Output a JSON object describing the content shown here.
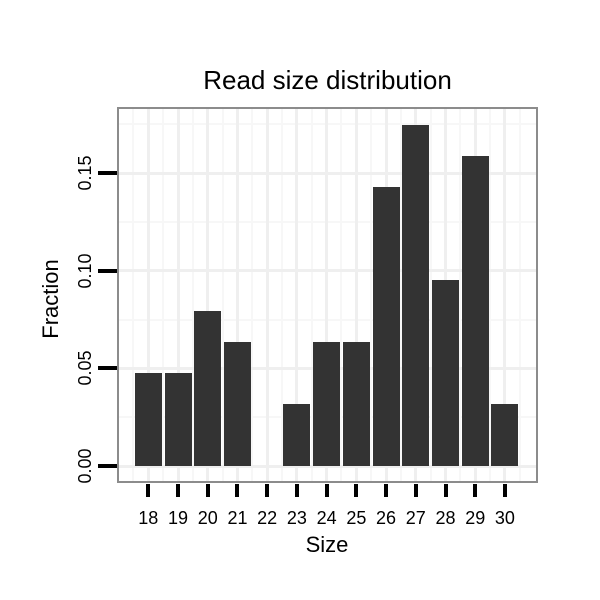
{
  "title": "Read size distribution",
  "chart_data": {
    "type": "bar",
    "title": "Read size distribution",
    "xlabel": "Size",
    "ylabel": "Fraction",
    "categories": [
      "18",
      "19",
      "20",
      "21",
      "22",
      "23",
      "24",
      "25",
      "26",
      "27",
      "28",
      "29",
      "30"
    ],
    "values": [
      0.0476,
      0.0476,
      0.0794,
      0.0635,
      0,
      0.0317,
      0.0635,
      0.0635,
      0.1429,
      0.1746,
      0.0952,
      0.1587,
      0.0317
    ],
    "yticks": [
      0,
      0.05,
      0.1,
      0.15
    ],
    "ytick_labels": [
      "0.00",
      "0.05",
      "0.10",
      "0.15"
    ],
    "ylim": [
      0,
      0.183
    ],
    "grid": true,
    "legend": "none",
    "bar_color": "#333333",
    "panel_border_color": "#8c8c8c",
    "grid_major_color": "#efefef",
    "grid_minor_color": "#f7f7f7",
    "tick_color": "#000000",
    "text_color": "#000000"
  }
}
